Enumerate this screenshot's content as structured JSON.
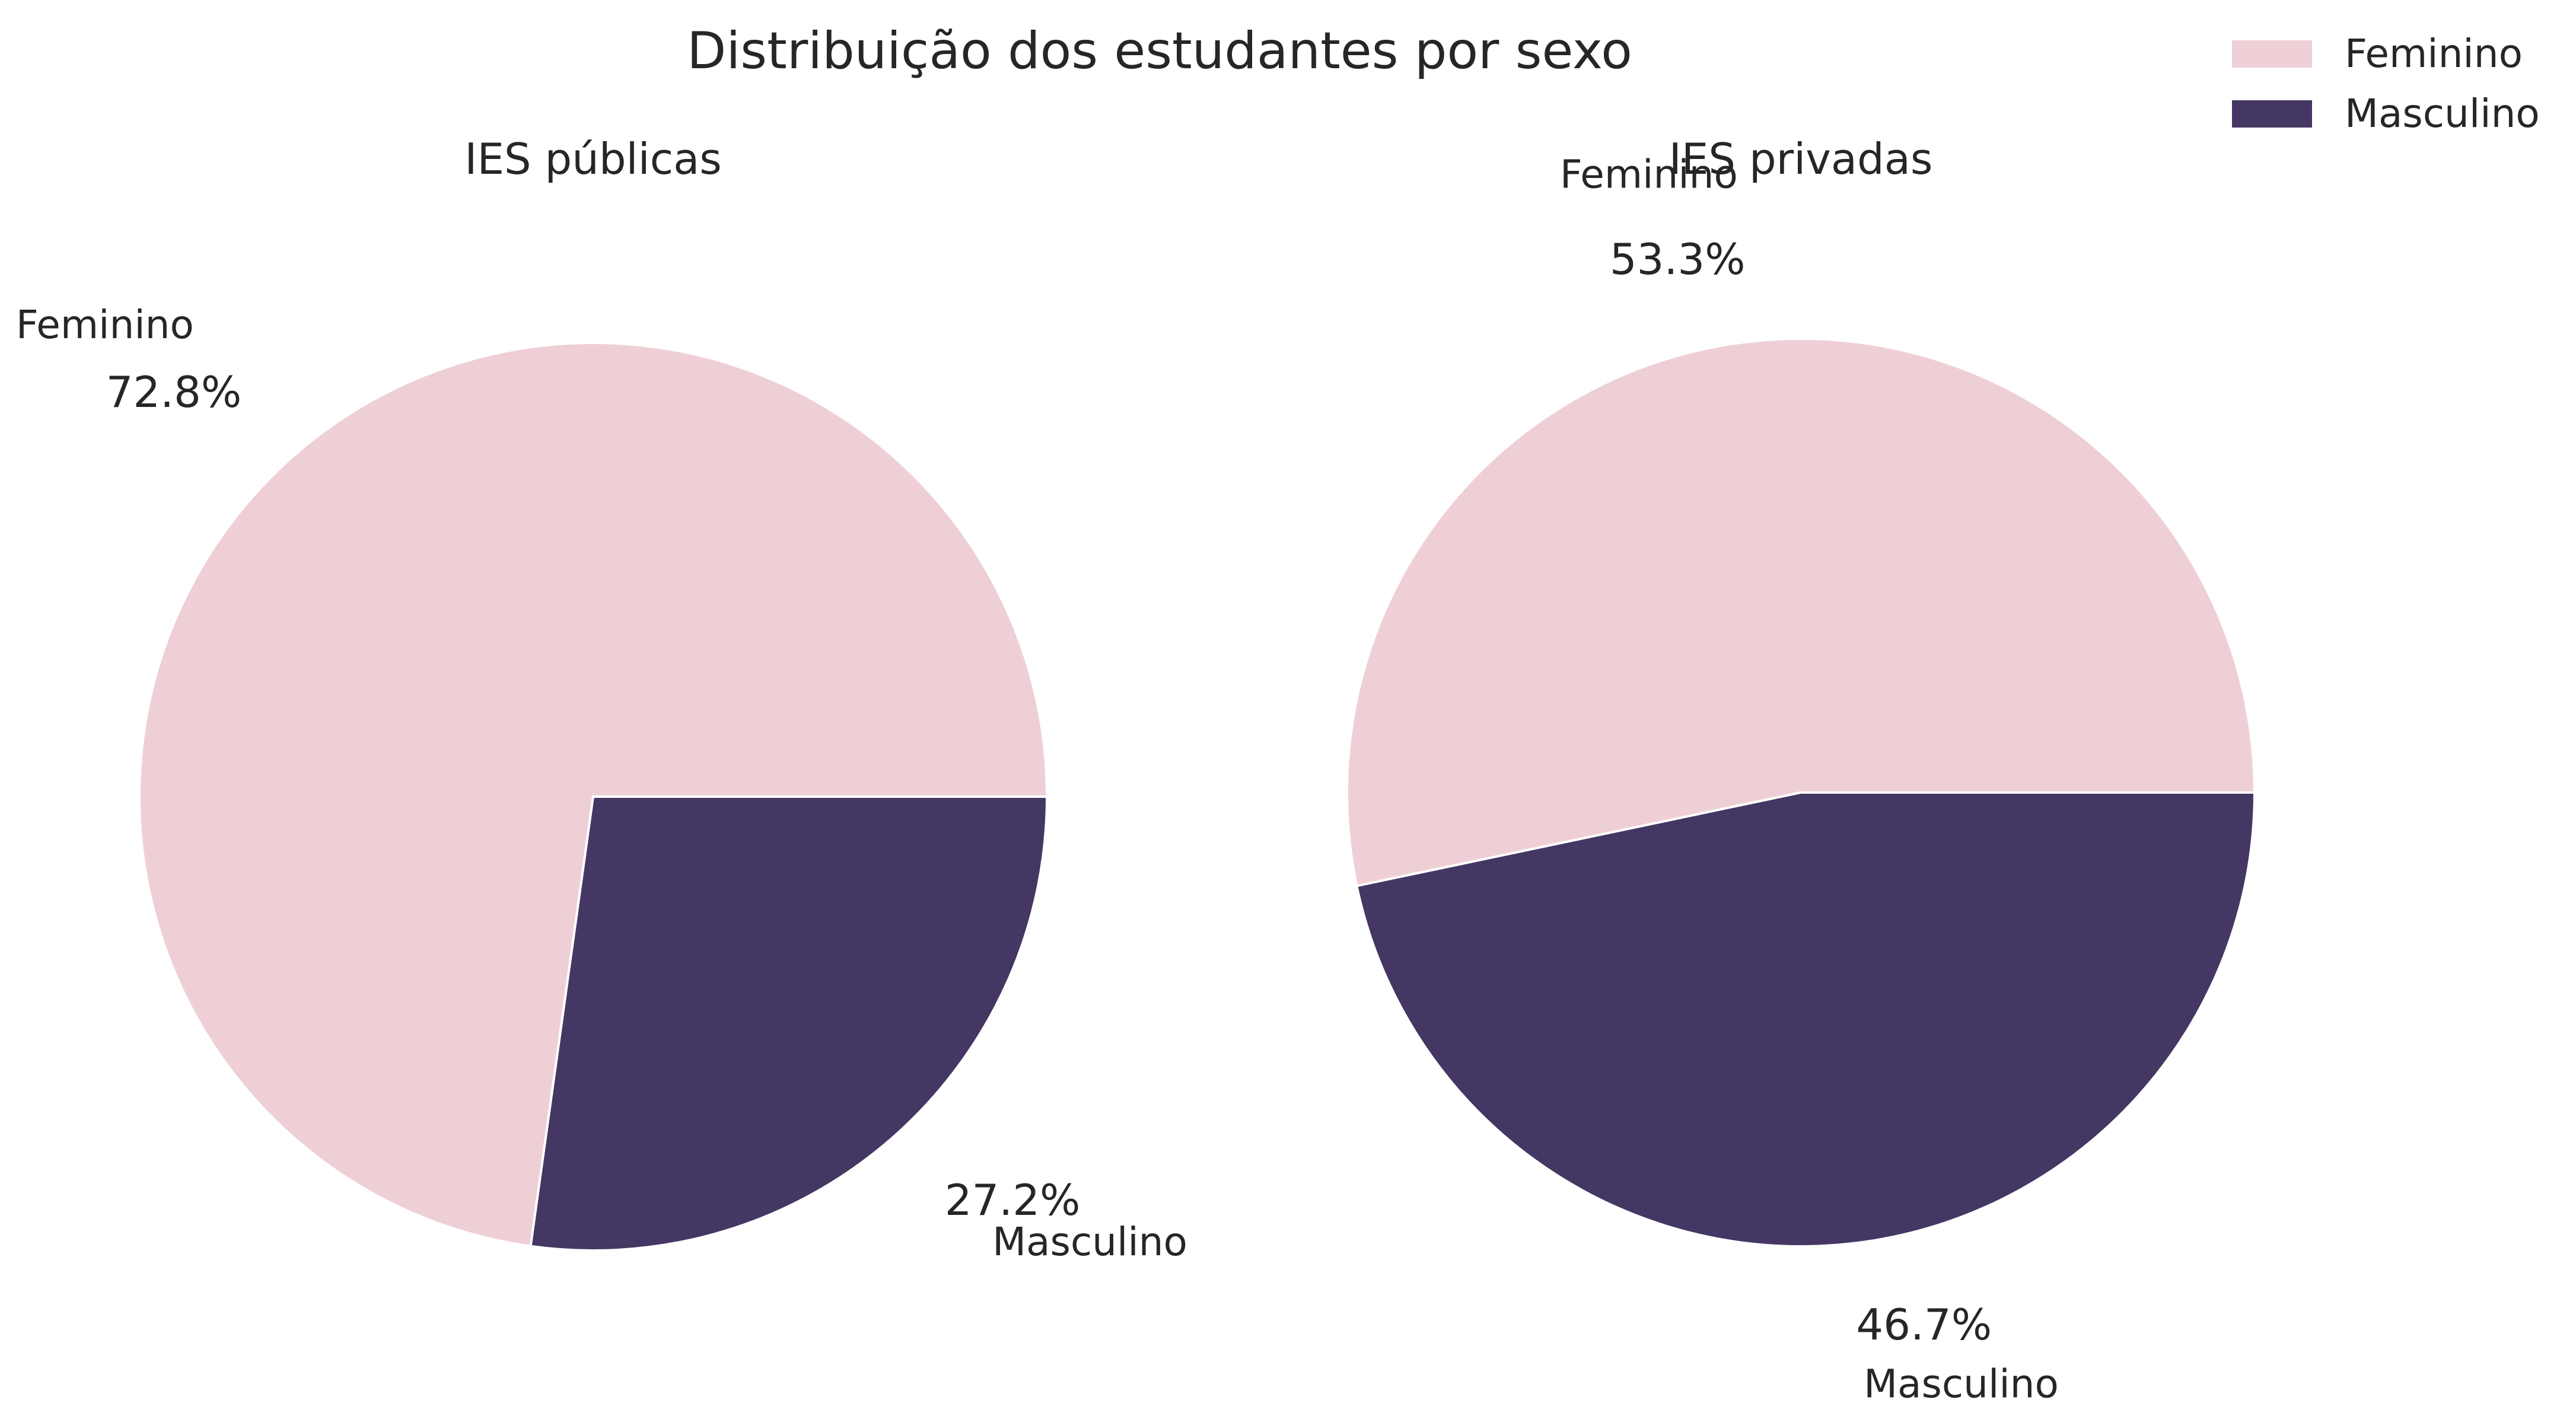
{
  "title": "Distribuição dos estudantes por sexo",
  "legend": {
    "placement": "top-right",
    "items": [
      {
        "label": "Feminino",
        "color": "#efcfd6"
      },
      {
        "label": "Masculino",
        "color": "#443764"
      }
    ]
  },
  "chart_data": [
    {
      "type": "pie",
      "title": "IES públicas",
      "start_angle_deg": 0,
      "direction": "counterclockwise",
      "slices": [
        {
          "label": "Feminino",
          "value": 72.8,
          "pct_label": "72.8%",
          "color": "#efcfd6"
        },
        {
          "label": "Masculino",
          "value": 27.2,
          "pct_label": "27.2%",
          "color": "#443764"
        }
      ]
    },
    {
      "type": "pie",
      "title": "IES privadas",
      "start_angle_deg": 0,
      "direction": "counterclockwise",
      "slices": [
        {
          "label": "Feminino",
          "value": 53.3,
          "pct_label": "53.3%",
          "color": "#efcfd6"
        },
        {
          "label": "Masculino",
          "value": 46.7,
          "pct_label": "46.7%",
          "color": "#443764"
        }
      ]
    }
  ]
}
